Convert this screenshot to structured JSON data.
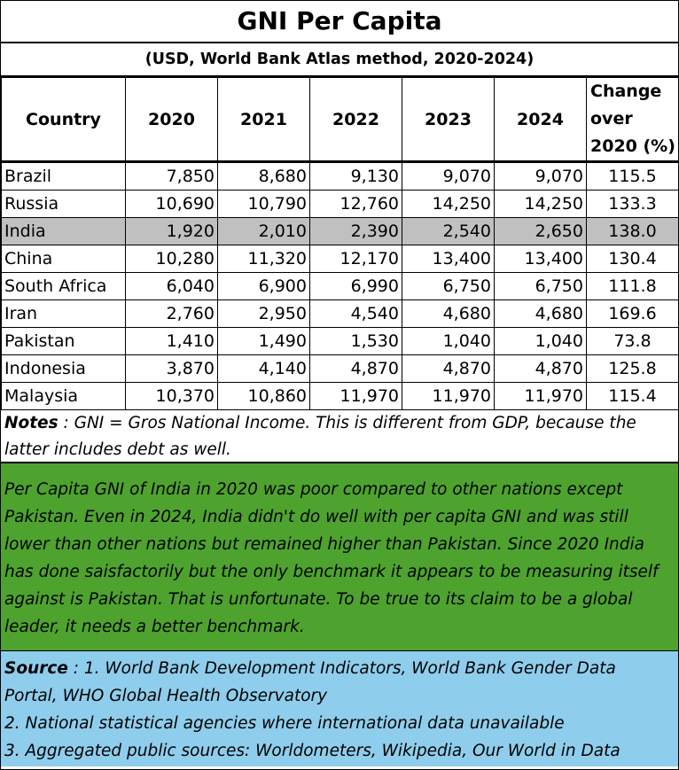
{
  "title": "GNI Per Capita",
  "subtitle": "(USD, World Bank Atlas method, 2020-2024)",
  "table": {
    "headers": [
      "Country",
      "2020",
      "2021",
      "2022",
      "2023",
      "2024"
    ],
    "change_header": [
      "Change",
      "over",
      "2020 (%)"
    ],
    "rows": [
      {
        "country": "Brazil",
        "values": [
          "7,850",
          "8,680",
          "9,130",
          "9,070",
          "9,070"
        ],
        "change": "115.5",
        "highlight": false
      },
      {
        "country": "Russia",
        "values": [
          "10,690",
          "10,790",
          "12,760",
          "14,250",
          "14,250"
        ],
        "change": "133.3",
        "highlight": false
      },
      {
        "country": "India",
        "values": [
          "1,920",
          "2,010",
          "2,390",
          "2,540",
          "2,650"
        ],
        "change": "138.0",
        "highlight": true
      },
      {
        "country": "China",
        "values": [
          "10,280",
          "11,320",
          "12,170",
          "13,400",
          "13,400"
        ],
        "change": "130.4",
        "highlight": false
      },
      {
        "country": "South Africa",
        "values": [
          "6,040",
          "6,900",
          "6,990",
          "6,750",
          "6,750"
        ],
        "change": "111.8",
        "highlight": false
      },
      {
        "country": "Iran",
        "values": [
          "2,760",
          "2,950",
          "4,540",
          "4,680",
          "4,680"
        ],
        "change": "169.6",
        "highlight": false
      },
      {
        "country": "Pakistan",
        "values": [
          "1,410",
          "1,490",
          "1,530",
          "1,040",
          "1,040"
        ],
        "change": "73.8",
        "highlight": false
      },
      {
        "country": "Indonesia",
        "values": [
          "3,870",
          "4,140",
          "4,870",
          "4,870",
          "4,870"
        ],
        "change": "125.8",
        "highlight": false
      },
      {
        "country": "Malaysia",
        "values": [
          "10,370",
          "10,860",
          "11,970",
          "11,970",
          "11,970"
        ],
        "change": "115.4",
        "highlight": false
      }
    ]
  },
  "notes": {
    "label": "Notes",
    "text": " :  GNI = Gros National Income.  This is different from GDP, because the latter includes debt as well."
  },
  "comment": "Per Capita GNI of India in 2020 was poor compared to other nations except Pakistan. Even in 2024, India didn't do well with per capita GNI and was still lower than other nations but remained  higher than Pakistan. Since 2020 India has done saisfactorily but the only benchmark it appears to be measuring itself against is Pakistan.  That is unfortunate. To be true to its claim to be a global leader, it needs a better benchmark.",
  "source": {
    "label": "Source",
    "lines": [
      " : 1. World Bank Development Indicators, World Bank Gender Data",
      "Portal, WHO Global Health Observatory",
      "2. National statistical agencies where international data unavailable",
      "3. Aggregated public sources: Worldometers, Wikipedia, Our World in Data"
    ]
  },
  "colors": {
    "highlight_row": "#c0c0c0",
    "comment_bg": "#4ea32e",
    "source_bg": "#8fcdec"
  }
}
